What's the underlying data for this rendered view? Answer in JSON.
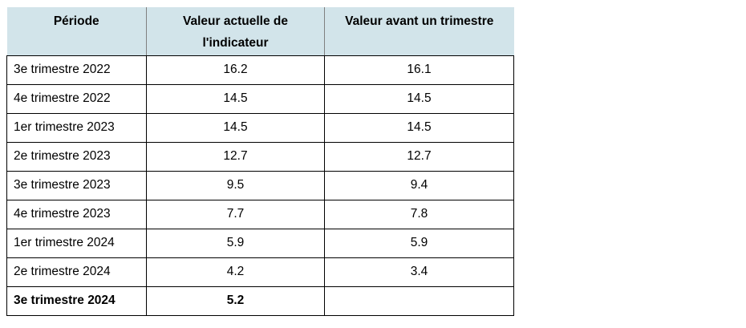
{
  "table": {
    "headers": [
      "Période",
      "Valeur actuelle de l'indicateur",
      "Valeur avant un trimestre"
    ],
    "rows": [
      {
        "period": "3e trimestre 2022",
        "current": "16.2",
        "previous": "16.1"
      },
      {
        "period": "4e trimestre 2022",
        "current": "14.5",
        "previous": "14.5"
      },
      {
        "period": "1er trimestre 2023",
        "current": "14.5",
        "previous": "14.5"
      },
      {
        "period": "2e trimestre 2023",
        "current": "12.7",
        "previous": "12.7"
      },
      {
        "period": "3e trimestre 2023",
        "current": "9.5",
        "previous": "9.4"
      },
      {
        "period": "4e trimestre 2023",
        "current": "7.7",
        "previous": "7.8"
      },
      {
        "period": "1er trimestre 2024",
        "current": "5.9",
        "previous": "5.9"
      },
      {
        "period": "2e trimestre 2024",
        "current": "4.2",
        "previous": "3.4"
      },
      {
        "period": "3e trimestre 2024",
        "current": "5.2",
        "previous": ""
      }
    ]
  }
}
